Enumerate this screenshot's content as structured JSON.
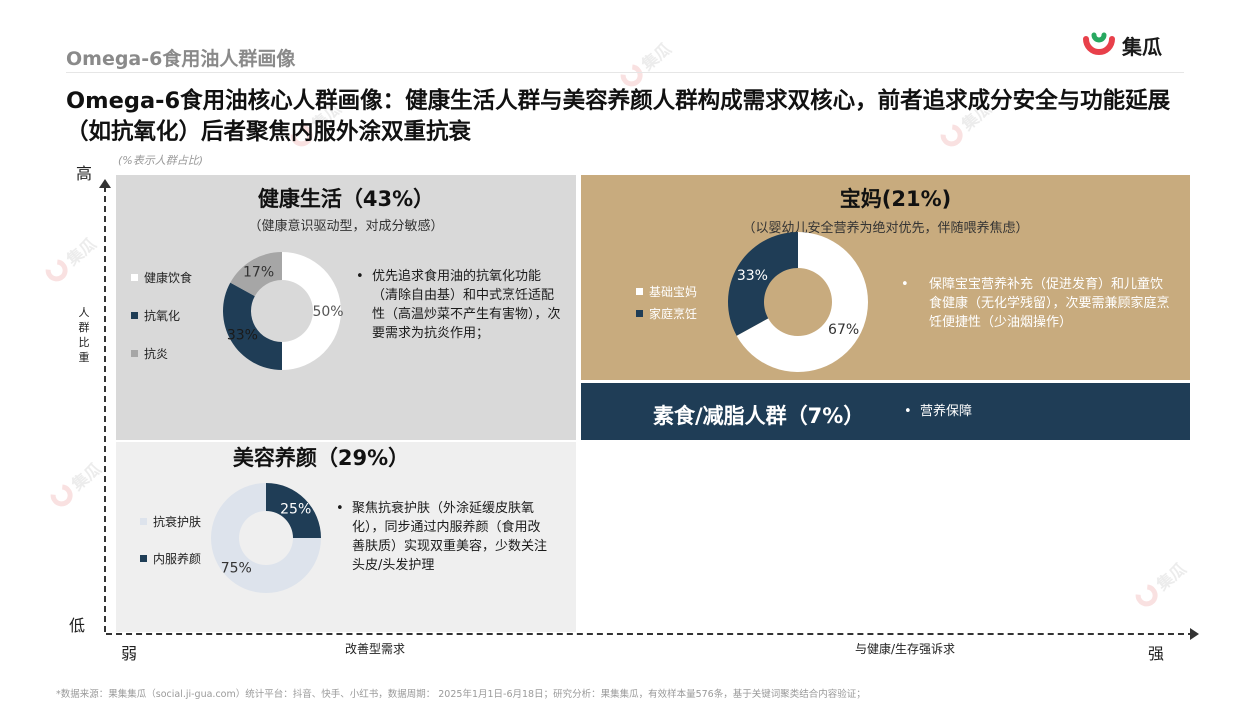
{
  "header": {
    "section_title": "Omega-6食用油人群画像",
    "brand": "集瓜",
    "headline": "Omega-6食用油核心人群画像：健康生活人群与美容养颜人群构成需求双核心，前者追求成分安全与功能延展（如抗氧化）后者聚焦内服外涂双重抗衰",
    "note": "(%表示人群占比)"
  },
  "axes": {
    "y_high": "高",
    "y_low": "低",
    "y_title": "人群比重",
    "x_weak": "弱",
    "x_strong": "强",
    "x_left_mid": "改善型需求",
    "x_right_mid": "与健康/生存强诉求"
  },
  "colors": {
    "navy": "#1f3d56",
    "white": "#ffffff",
    "gray": "#a6a6a6",
    "light": "#dde3ec",
    "gold": "#c8ab7e"
  },
  "panels": {
    "health": {
      "title": "健康生活（43%）",
      "subtitle": "（健康意识驱动型，对成分敏感）",
      "legend": [
        "健康饮食",
        "抗氧化",
        "抗炎"
      ],
      "bullet": "优先追求食用油的抗氧化功能（清除自由基）和中式烹饪适配性（高温炒菜不产生有害物），次要需求为抗炎作用；",
      "labels": [
        "50%",
        "33%",
        "17%"
      ]
    },
    "beauty": {
      "title": "美容养颜（29%）",
      "legend": [
        "抗衰护肤",
        "内服养颜"
      ],
      "bullet": "聚焦抗衰护肤（外涂延缓皮肤氧化），同步通过内服养颜（食用改善肤质）实现双重美容，少数关注头皮/头发护理",
      "labels": [
        "75%",
        "25%"
      ]
    },
    "mom": {
      "title": "宝妈(21%)",
      "subtitle": "（以婴幼儿安全营养为绝对优先，伴随喂养焦虑）",
      "legend": [
        "基础宝妈",
        "家庭烹饪"
      ],
      "bullet": "保障宝宝营养补充（促进发育）和儿童饮食健康（无化学残留），次要需兼顾家庭烹饪便捷性（少油烟操作）",
      "labels": [
        "67%",
        "33%"
      ]
    },
    "veg": {
      "title": "素食/减脂人群（7%）",
      "bullet": "营养保障"
    }
  },
  "chart_data": [
    {
      "type": "pie",
      "title": "健康生活（43%）",
      "categories": [
        "健康饮食",
        "抗氧化",
        "抗炎"
      ],
      "values": [
        50,
        33,
        17
      ],
      "unit": "%"
    },
    {
      "type": "pie",
      "title": "美容养颜（29%）",
      "categories": [
        "抗衰护肤",
        "内服养颜"
      ],
      "values": [
        75,
        25
      ],
      "unit": "%"
    },
    {
      "type": "pie",
      "title": "宝妈(21%)",
      "categories": [
        "基础宝妈",
        "家庭烹饪"
      ],
      "values": [
        67,
        33
      ],
      "unit": "%"
    }
  ],
  "footer": "*数据来源：果集集瓜（social.ji-gua.com）统计平台：抖音、快手、小红书，数据周期： 2025年1月1日-6月18日；研究分析：果集集瓜，有效样本量576条，基于关键词聚类结合内容验证；"
}
